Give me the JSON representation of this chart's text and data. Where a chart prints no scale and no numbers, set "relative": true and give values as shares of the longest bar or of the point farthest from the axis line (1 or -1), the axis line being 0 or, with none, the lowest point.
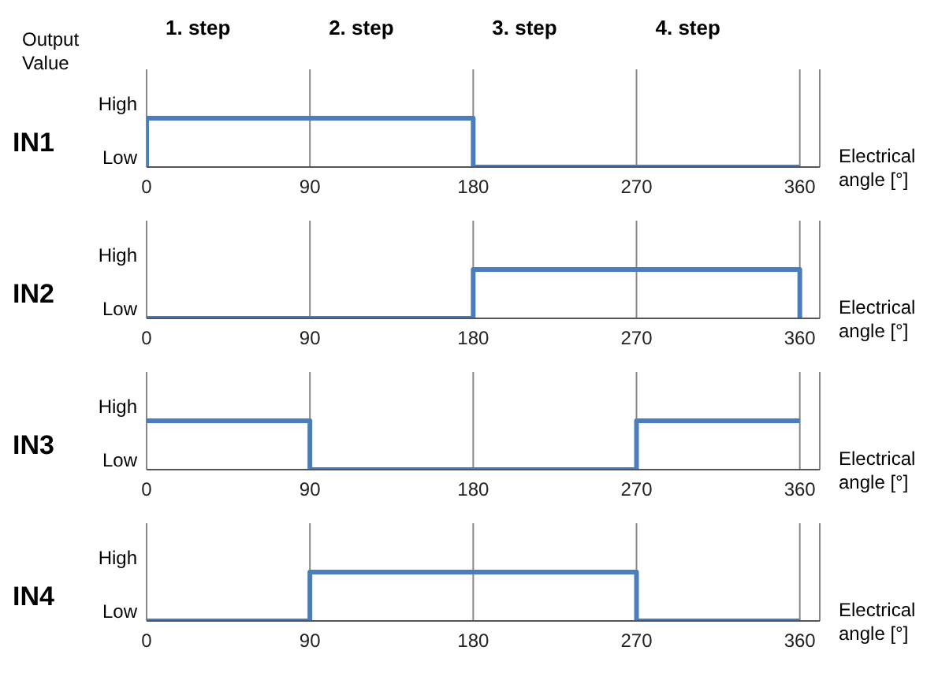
{
  "chart_data": [
    {
      "type": "step",
      "relative": true,
      "title": "IN1",
      "ylabel": "Output Value",
      "xlabel": "Electrical angle [°]",
      "annotations": [
        "1. step",
        "2. step",
        "3. step",
        "4. step",
        "High",
        "Low"
      ],
      "x": [
        0,
        0,
        180,
        180,
        360
      ],
      "values": [
        0,
        1,
        1,
        0,
        0
      ],
      "color": "#4a7ebb",
      "xlim": [
        0,
        371
      ],
      "xticks": [
        0,
        90,
        180,
        270,
        360
      ],
      "grid": "x"
    },
    {
      "type": "step",
      "relative": true,
      "title": "IN2",
      "xlabel": "Electrical angle [°]",
      "annotations": [
        "High",
        "Low"
      ],
      "x": [
        0,
        180,
        180,
        360,
        360
      ],
      "values": [
        0,
        0,
        1,
        1,
        0
      ],
      "color": "#4a7ebb",
      "xlim": [
        0,
        371
      ],
      "xticks": [
        0,
        90,
        180,
        270,
        360
      ],
      "grid": "x"
    },
    {
      "type": "step",
      "relative": true,
      "title": "IN3",
      "xlabel": "Electrical angle [°]",
      "annotations": [
        "High",
        "Low"
      ],
      "x": [
        0,
        90,
        90,
        270,
        270,
        360
      ],
      "values": [
        1,
        1,
        0,
        0,
        1,
        1
      ],
      "color": "#4a7ebb",
      "xlim": [
        0,
        371
      ],
      "xticks": [
        0,
        90,
        180,
        270,
        360
      ],
      "grid": "x"
    },
    {
      "type": "step",
      "relative": true,
      "title": "IN4",
      "xlabel": "Electrical angle [°]",
      "annotations": [
        "High",
        "Low"
      ],
      "x": [
        0,
        90,
        90,
        270,
        270,
        360
      ],
      "values": [
        0,
        0,
        1,
        1,
        0,
        0
      ],
      "color": "#4a7ebb",
      "xlim": [
        0,
        371
      ],
      "xticks": [
        0,
        90,
        180,
        270,
        360
      ],
      "grid": "x"
    }
  ]
}
